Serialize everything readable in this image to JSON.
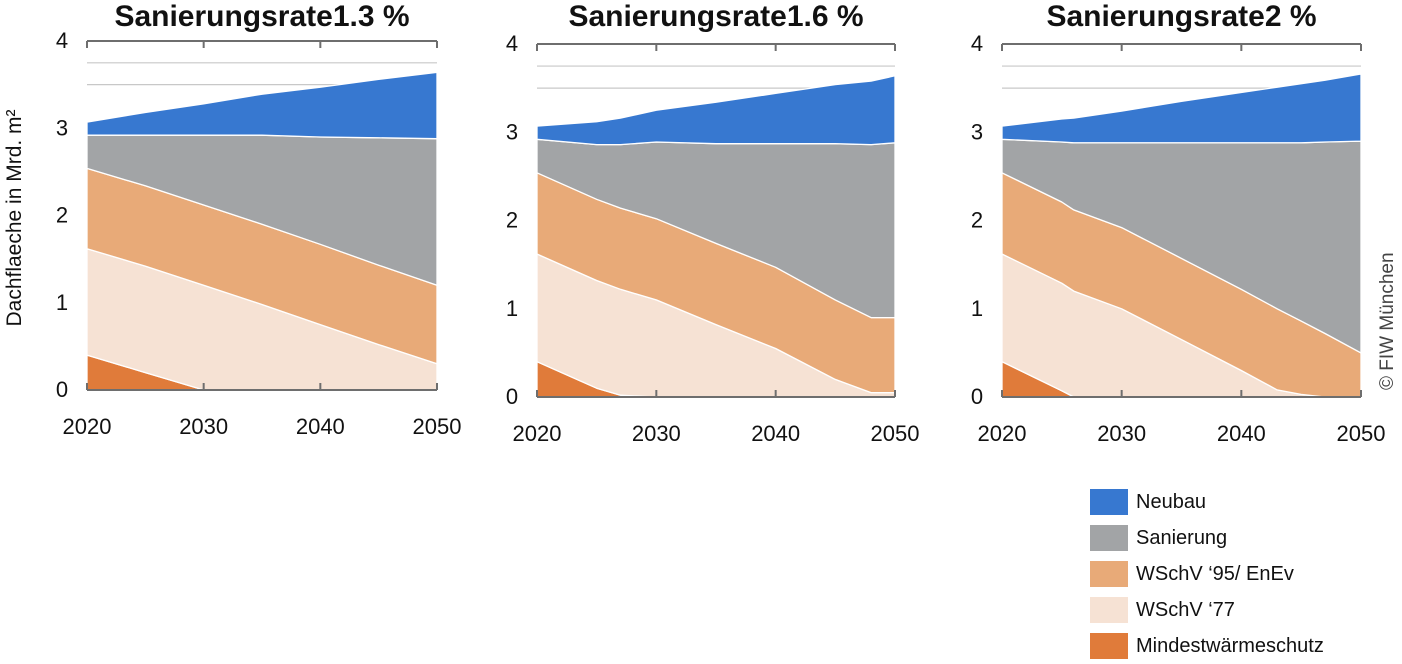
{
  "watermark": "© FIW München",
  "ylabel": "Dachflaeche in Mrd. m²",
  "legend": [
    {
      "key": "neubau",
      "label": "Neubau",
      "color": "#3778d0"
    },
    {
      "key": "sanierung",
      "label": "Sanierung",
      "color": "#a2a4a6"
    },
    {
      "key": "wschv95",
      "label": "WSchV ‘95/ EnEv",
      "color": "#e8aa78"
    },
    {
      "key": "wschv77",
      "label": "WSchV ‘77",
      "color": "#f6e2d4"
    },
    {
      "key": "mindest",
      "label": "Mindestwärmeschutz",
      "color": "#e07b3a"
    }
  ],
  "chart_data": [
    {
      "type": "area",
      "stacked": true,
      "title": "Sanierungsrate1.3 %",
      "ylabel": "Dachflaeche in Mrd. m²",
      "x": [
        2020,
        2025,
        2030,
        2035,
        2040,
        2045,
        2050
      ],
      "xticks": [
        2020,
        2030,
        2040,
        2050
      ],
      "ylim": [
        0,
        4
      ],
      "yticks": [
        0,
        1,
        2,
        3,
        4
      ],
      "series": [
        {
          "name": "Mindestwärmeschutz",
          "values": [
            0.4,
            0.2,
            0.0,
            0.0,
            0.0,
            0.0,
            0.0
          ]
        },
        {
          "name": "WSchV ‘77",
          "values": [
            1.22,
            1.22,
            1.2,
            0.98,
            0.75,
            0.52,
            0.3
          ]
        },
        {
          "name": "WSchV ‘95/ EnEv",
          "values": [
            0.92,
            0.92,
            0.92,
            0.92,
            0.92,
            0.91,
            0.9
          ]
        },
        {
          "name": "Sanierung",
          "values": [
            0.38,
            0.58,
            0.8,
            1.02,
            1.23,
            1.46,
            1.68
          ]
        },
        {
          "name": "Neubau",
          "values": [
            0.15,
            0.26,
            0.36,
            0.47,
            0.57,
            0.67,
            0.76
          ]
        }
      ]
    },
    {
      "type": "area",
      "stacked": true,
      "title": "Sanierungsrate1.6 %",
      "x": [
        2020,
        2025,
        2027,
        2030,
        2035,
        2040,
        2045,
        2048,
        2050
      ],
      "xticks": [
        2020,
        2030,
        2040,
        2050
      ],
      "ylim": [
        0,
        4
      ],
      "yticks": [
        0,
        1,
        2,
        3,
        4
      ],
      "series": [
        {
          "name": "Mindestwärmeschutz",
          "values": [
            0.4,
            0.1,
            0.02,
            0.0,
            0.0,
            0.0,
            0.0,
            0.0,
            0.0
          ]
        },
        {
          "name": "WSchV ‘77",
          "values": [
            1.22,
            1.22,
            1.2,
            1.1,
            0.82,
            0.55,
            0.2,
            0.05,
            0.05
          ]
        },
        {
          "name": "WSchV ‘95/ EnEv",
          "values": [
            0.92,
            0.92,
            0.92,
            0.92,
            0.92,
            0.92,
            0.9,
            0.85,
            0.85
          ]
        },
        {
          "name": "Sanierung",
          "values": [
            0.38,
            0.62,
            0.72,
            0.87,
            1.13,
            1.4,
            1.77,
            1.96,
            1.98
          ]
        },
        {
          "name": "Neubau",
          "values": [
            0.15,
            0.26,
            0.3,
            0.36,
            0.47,
            0.57,
            0.67,
            0.72,
            0.76
          ]
        }
      ]
    },
    {
      "type": "area",
      "stacked": true,
      "title": "Sanierungsrate2 %",
      "x": [
        2020,
        2025,
        2026,
        2030,
        2035,
        2040,
        2043,
        2045,
        2047,
        2050
      ],
      "xticks": [
        2020,
        2030,
        2040,
        2050
      ],
      "ylim": [
        0,
        4
      ],
      "yticks": [
        0,
        1,
        2,
        3,
        4
      ],
      "series": [
        {
          "name": "Mindestwärmeschutz",
          "values": [
            0.4,
            0.07,
            0.0,
            0.0,
            0.0,
            0.0,
            0.0,
            0.0,
            0.0,
            0.0
          ]
        },
        {
          "name": "WSchV ‘77",
          "values": [
            1.22,
            1.22,
            1.2,
            1.0,
            0.65,
            0.3,
            0.08,
            0.03,
            0.0,
            0.0
          ]
        },
        {
          "name": "WSchV ‘95/ EnEv",
          "values": [
            0.92,
            0.92,
            0.92,
            0.92,
            0.92,
            0.92,
            0.92,
            0.83,
            0.72,
            0.5
          ]
        },
        {
          "name": "Sanierung",
          "values": [
            0.38,
            0.68,
            0.76,
            0.96,
            1.31,
            1.66,
            1.88,
            2.02,
            2.17,
            2.4
          ]
        },
        {
          "name": "Neubau",
          "values": [
            0.15,
            0.26,
            0.28,
            0.36,
            0.47,
            0.57,
            0.63,
            0.67,
            0.7,
            0.76
          ]
        }
      ]
    }
  ]
}
